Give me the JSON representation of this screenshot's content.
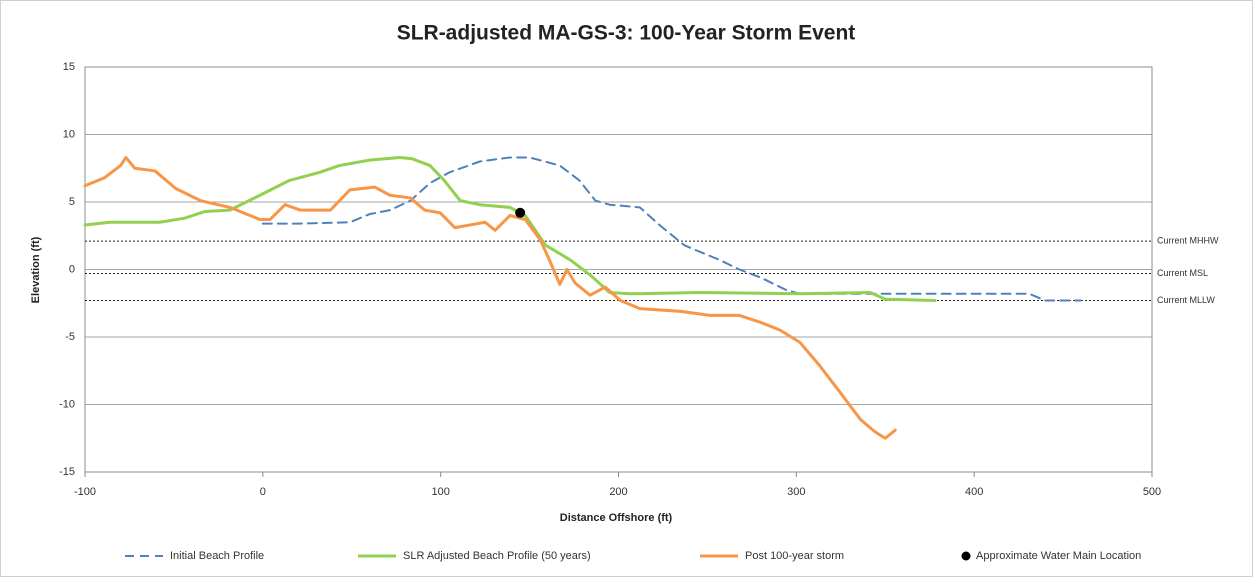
{
  "chart_data": {
    "type": "line",
    "title": "SLR-adjusted MA-GS-3:  100-Year Storm Event",
    "x_label": "Distance Offshore (ft)",
    "y_label": "Elevation (ft)",
    "xlim": [
      -100,
      500
    ],
    "xticks": [
      -100,
      0,
      100,
      200,
      300,
      400,
      500
    ],
    "ylim": [
      -15,
      15
    ],
    "yticks": [
      -15,
      -10,
      -5,
      0,
      5,
      10,
      15
    ],
    "grid": true,
    "legend": "bottom",
    "reference_lines": [
      {
        "label": "Current MHHW",
        "value": 2.1
      },
      {
        "label": "Current MSL",
        "value": -0.3
      },
      {
        "label": "Current MLLW",
        "value": -2.3
      }
    ],
    "series": [
      {
        "name": "Initial Beach Profile",
        "color": "#4f81bd",
        "style": "dashed",
        "x": [
          0,
          21,
          49,
          60,
          71.5,
          83,
          94,
          105,
          122,
          139,
          150,
          167,
          178,
          187,
          195,
          212,
          223,
          237,
          246,
          257,
          268,
          280,
          294,
          302,
          358,
          431,
          440,
          460
        ],
        "values": [
          3.4,
          3.4,
          3.5,
          4.1,
          4.4,
          5.1,
          6.4,
          7.2,
          8.0,
          8.3,
          8.3,
          7.7,
          6.6,
          5.1,
          4.8,
          4.6,
          3.3,
          1.8,
          1.3,
          0.7,
          0,
          -0.6,
          -1.5,
          -1.8,
          -1.8,
          -1.8,
          -2.3,
          -2.3
        ]
      },
      {
        "name": "SLR Adjusted Beach Profile (50 years)",
        "color": "#92d050",
        "style": "solid",
        "x": [
          -100,
          -86,
          -58,
          -44,
          -32.5,
          -18.5,
          -1.6,
          15,
          32,
          43,
          60,
          77,
          84,
          94,
          102,
          111,
          122,
          139,
          147.5,
          159,
          173,
          184,
          195,
          206.5,
          246,
          302,
          341.5,
          350,
          378
        ],
        "values": [
          3.3,
          3.5,
          3.5,
          3.8,
          4.3,
          4.4,
          5.5,
          6.6,
          7.2,
          7.7,
          8.1,
          8.3,
          8.2,
          7.7,
          6.6,
          5.1,
          4.8,
          4.6,
          4.0,
          1.8,
          0.7,
          -0.4,
          -1.7,
          -1.8,
          -1.7,
          -1.8,
          -1.7,
          -2.2,
          -2.3
        ]
      },
      {
        "name": "Post 100-year storm",
        "color": "#f79646",
        "style": "solid",
        "x": [
          -100,
          -89,
          -80,
          -77,
          -72,
          -60.6,
          -49,
          -35,
          -18.5,
          -1.6,
          4,
          12.5,
          21,
          38,
          49,
          63,
          71.5,
          83,
          91,
          99.7,
          108,
          116.5,
          125,
          130.6,
          139,
          147.6,
          156,
          161.5,
          167,
          171,
          175.6,
          184,
          192.5,
          201,
          212,
          235,
          251.5,
          268,
          279.6,
          291,
          302,
          313,
          324.6,
          336,
          344,
          350,
          355.6
        ],
        "values": [
          6.2,
          6.8,
          7.7,
          8.3,
          7.5,
          7.3,
          6.0,
          5.1,
          4.6,
          3.7,
          3.7,
          4.8,
          4.4,
          4.4,
          5.9,
          6.1,
          5.5,
          5.3,
          4.4,
          4.2,
          3.1,
          3.3,
          3.5,
          2.9,
          4.0,
          3.7,
          2.2,
          0.6,
          -1.1,
          0,
          -1.0,
          -1.9,
          -1.3,
          -2.3,
          -2.9,
          -3.1,
          -3.4,
          -3.4,
          -3.9,
          -4.5,
          -5.4,
          -7.1,
          -9.1,
          -11.1,
          -12.0,
          -12.5,
          -11.9
        ]
      },
      {
        "name": "Approximate Water Main Location",
        "color": "#000000",
        "style": "marker",
        "x": [
          144.7
        ],
        "values": [
          4.2
        ]
      }
    ]
  }
}
